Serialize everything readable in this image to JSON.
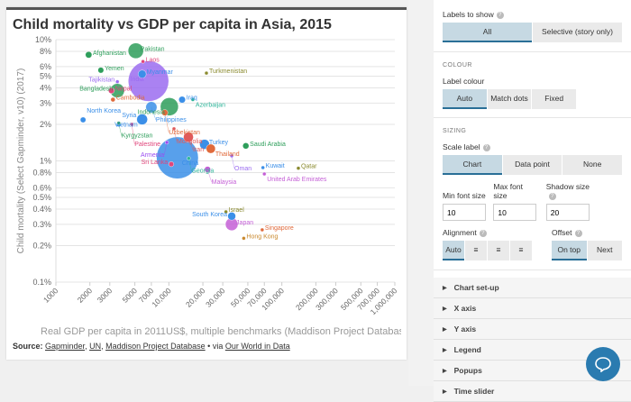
{
  "chart_data": {
    "type": "scatter",
    "title": "Child mortality vs GDP per capita in Asia, 2015",
    "xlabel": "Real GDP per capita in 2011US$, multiple benchmarks (Maddison Project Database (201",
    "ylabel": "Child mortality (Select Gapminder, v10) (2017)",
    "xscale": "log",
    "yscale": "log",
    "xlim": [
      1000,
      1000000
    ],
    "ylim": [
      0.1,
      10
    ],
    "xticks": [
      1000,
      2000,
      3000,
      5000,
      7000,
      10000,
      20000,
      30000,
      50000,
      70000,
      100000,
      200000,
      300000,
      500000,
      700000,
      1000000
    ],
    "xtick_labels": [
      "1000",
      "2000",
      "3000",
      "5000",
      "7000",
      "10,000",
      "20,000",
      "30,000",
      "50,000",
      "70,000",
      "100,000",
      "200,000",
      "300,000",
      "500,000",
      "700,000",
      "1,000,000"
    ],
    "yticks": [
      10,
      8,
      6,
      5,
      4,
      3,
      2,
      1,
      0.8,
      0.6,
      0.5,
      0.4,
      0.3,
      0.2,
      0.1
    ],
    "ytick_labels": [
      "10%",
      "8%",
      "6%",
      "5%",
      "4%",
      "3%",
      "2%",
      "1%",
      "0.8%",
      "0.6%",
      "0.5%",
      "0.4%",
      "0.3%",
      "0.2%",
      "0.1%"
    ],
    "grid": "horizontal",
    "size_by": "population",
    "points": [
      {
        "label": "Pakistan",
        "x": 5100,
        "y": 8.1,
        "pop": 190,
        "color": "#2e9e5b"
      },
      {
        "label": "Afghanistan",
        "x": 1950,
        "y": 7.5,
        "pop": 34,
        "color": "#2e9e5b"
      },
      {
        "label": "Laos",
        "x": 5900,
        "y": 6.6,
        "pop": 7,
        "color": "#e0457b"
      },
      {
        "label": "Yemen",
        "x": 2500,
        "y": 5.6,
        "pop": 27,
        "color": "#2e9e5b"
      },
      {
        "label": "Myanmar",
        "x": 5800,
        "y": 5.2,
        "pop": 52,
        "color": "#3b8fe8"
      },
      {
        "label": "Turkmenistan",
        "x": 21500,
        "y": 5.3,
        "pop": 6,
        "color": "#8a8a2e"
      },
      {
        "label": "India",
        "x": 6600,
        "y": 4.55,
        "pop": 1310,
        "color": "#9b6cf0"
      },
      {
        "label": "Tajikistan",
        "x": 3500,
        "y": 4.5,
        "pop": 9,
        "color": "#9b6cf0"
      },
      {
        "label": "Nepal",
        "x": 3100,
        "y": 3.8,
        "pop": 28,
        "color": "#e0457b"
      },
      {
        "label": "Bangladesh",
        "x": 3500,
        "y": 3.8,
        "pop": 160,
        "color": "#2e9e5b"
      },
      {
        "label": "Cambodia",
        "x": 3200,
        "y": 3.2,
        "pop": 16,
        "color": "#e06a3b"
      },
      {
        "label": "Iraq",
        "x": 13100,
        "y": 3.2,
        "pop": 36,
        "color": "#3b8fe8"
      },
      {
        "label": "Azerbaijan",
        "x": 16300,
        "y": 3.2,
        "pop": 10,
        "color": "#2fb59a"
      },
      {
        "label": "Philippines",
        "x": 7000,
        "y": 2.77,
        "pop": 101,
        "color": "#3b8fe8"
      },
      {
        "label": "Indonesia",
        "x": 10100,
        "y": 2.8,
        "pop": 258,
        "color": "#2e9e5b"
      },
      {
        "label": "Uzbekistan",
        "x": 9200,
        "y": 2.5,
        "pop": 31,
        "color": "#e06a3b"
      },
      {
        "label": "North Korea",
        "x": 1740,
        "y": 2.18,
        "pop": 25,
        "color": "#3b8fe8"
      },
      {
        "label": "Vietnam",
        "x": 5800,
        "y": 2.2,
        "pop": 93,
        "color": "#3b8fe8"
      },
      {
        "label": "Kyrgyzstan",
        "x": 3600,
        "y": 2.05,
        "pop": 6,
        "color": "#2e9e5b"
      },
      {
        "label": "Syria",
        "x": 3600,
        "y": 2.0,
        "pop": 18,
        "color": "#3b8fe8"
      },
      {
        "label": "Palestine",
        "x": 4700,
        "y": 2.0,
        "pop": 4,
        "color": "#e0457b"
      },
      {
        "label": "Mongolia",
        "x": 11100,
        "y": 1.84,
        "pop": 3,
        "color": "#e05a5a"
      },
      {
        "label": "Iran",
        "x": 14900,
        "y": 1.57,
        "pop": 79,
        "color": "#e05a5a"
      },
      {
        "label": "Armenia",
        "x": 9600,
        "y": 1.42,
        "pop": 3,
        "color": "#9b4cf0"
      },
      {
        "label": "Turkey",
        "x": 20700,
        "y": 1.37,
        "pop": 78,
        "color": "#3b8fe8"
      },
      {
        "label": "Saudi Arabia",
        "x": 48000,
        "y": 1.33,
        "pop": 31,
        "color": "#2e9e5b"
      },
      {
        "label": "Thailand",
        "x": 23500,
        "y": 1.26,
        "pop": 68,
        "color": "#e06a3b"
      },
      {
        "label": "China",
        "x": 11900,
        "y": 1.06,
        "pop": 1400,
        "color": "#3b8fe8"
      },
      {
        "label": "Georgia",
        "x": 15000,
        "y": 1.05,
        "pop": 4,
        "color": "#2fb59a"
      },
      {
        "label": "Sri Lanka",
        "x": 10500,
        "y": 0.94,
        "pop": 21,
        "color": "#e0457b"
      },
      {
        "label": "Oman",
        "x": 36000,
        "y": 1.1,
        "pop": 4,
        "color": "#9b6cf0"
      },
      {
        "label": "Malaysia",
        "x": 22000,
        "y": 0.85,
        "pop": 30,
        "color": "#c45fd6"
      },
      {
        "label": "Kuwait",
        "x": 68000,
        "y": 0.88,
        "pop": 4,
        "color": "#3b8fe8"
      },
      {
        "label": "Qatar",
        "x": 140000,
        "y": 0.87,
        "pop": 2,
        "color": "#8a8a2e"
      },
      {
        "label": "United Arab Emirates",
        "x": 70000,
        "y": 0.78,
        "pop": 9,
        "color": "#c45fd6"
      },
      {
        "label": "Israel",
        "x": 32000,
        "y": 0.38,
        "pop": 8,
        "color": "#8a8a2e"
      },
      {
        "label": "South Korea",
        "x": 36000,
        "y": 0.35,
        "pop": 51,
        "color": "#3b8fe8"
      },
      {
        "label": "Japan",
        "x": 36000,
        "y": 0.3,
        "pop": 127,
        "color": "#c45fd6"
      },
      {
        "label": "Singapore",
        "x": 67000,
        "y": 0.27,
        "pop": 6,
        "color": "#e06a3b"
      },
      {
        "label": "Hong Kong",
        "x": 46000,
        "y": 0.23,
        "pop": 7,
        "color": "#c9892e"
      }
    ]
  },
  "source": {
    "prefix": "Source:",
    "links": [
      "Gapminder",
      "UN",
      "Maddison Project Database"
    ],
    "via": "• via",
    "owid": "Our World in Data"
  },
  "panel": {
    "labels_to_show": {
      "label": "Labels to show",
      "options": [
        "All",
        "Selective (story only)"
      ],
      "selected": "All"
    },
    "colour": {
      "heading": "COLOUR",
      "label": "Label colour",
      "options": [
        "Auto",
        "Match dots",
        "Fixed"
      ],
      "selected": "Auto"
    },
    "sizing": {
      "heading": "SIZING",
      "scale_label": "Scale label",
      "options": [
        "Chart",
        "Data point",
        "None"
      ],
      "selected": "Chart",
      "min_font_label": "Min font size",
      "min_font": "10",
      "max_font_label": "Max font size",
      "max_font": "10",
      "shadow_label": "Shadow size",
      "shadow": "20"
    },
    "alignment": {
      "label": "Alignment",
      "options": [
        "Auto",
        "align-left-icon",
        "align-center-icon",
        "align-right-icon"
      ],
      "selected": "Auto"
    },
    "offset": {
      "label": "Offset",
      "options": [
        "On top",
        "Next"
      ],
      "selected": "On top"
    },
    "sections": [
      "Chart set-up",
      "X axis",
      "Y axis",
      "Legend",
      "Popups",
      "Time slider"
    ]
  },
  "colors": {
    "accent": "#2a6f97",
    "selected_bg": "#c6d9e3",
    "chat": "#2a7bb0"
  }
}
